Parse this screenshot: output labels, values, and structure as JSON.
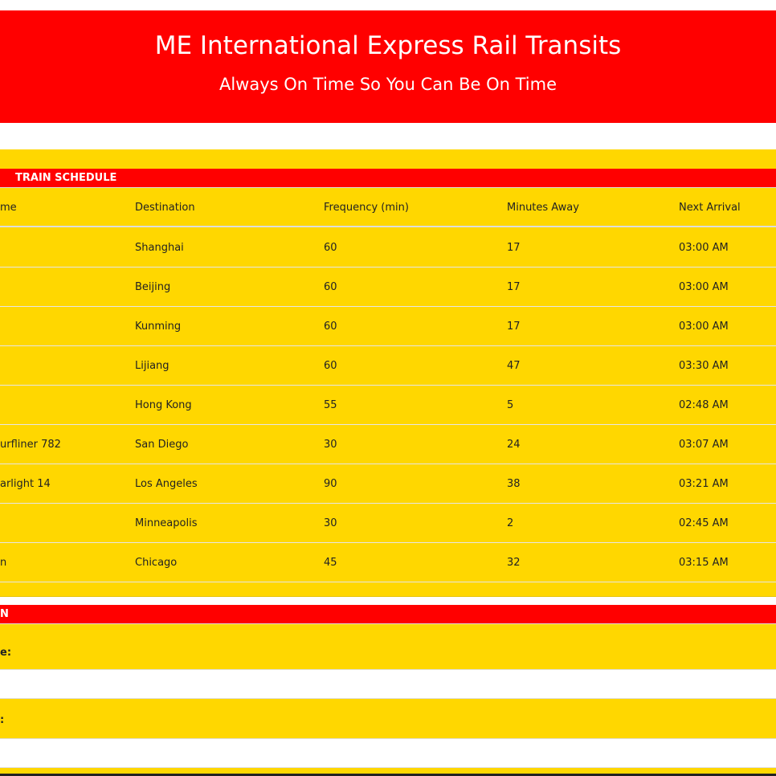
{
  "header": {
    "title": "ME International Express Rail Transits",
    "subtitle": "Always On Time So You Can Be On Time"
  },
  "schedule": {
    "title": "TRAIN SCHEDULE",
    "columns": [
      "me",
      "Destination",
      "Frequency (min)",
      "Minutes Away",
      "Next Arrival"
    ],
    "rows": [
      [
        "",
        "Shanghai",
        "60",
        "17",
        "03:00 AM"
      ],
      [
        "",
        "Beijing",
        "60",
        "17",
        "03:00 AM"
      ],
      [
        "",
        "Kunming",
        "60",
        "17",
        "03:00 AM"
      ],
      [
        "",
        "Lijiang",
        "60",
        "47",
        "03:30 AM"
      ],
      [
        "",
        "Hong Kong",
        "55",
        "5",
        "02:48 AM"
      ],
      [
        "urfliner 782",
        "San Diego",
        "30",
        "24",
        "03:07 AM"
      ],
      [
        "arlight 14",
        "Los Angeles",
        "90",
        "38",
        "03:21 AM"
      ],
      [
        "",
        "Minneapolis",
        "30",
        "2",
        "02:45 AM"
      ],
      [
        "n",
        "Chicago",
        "45",
        "32",
        "03:15 AM"
      ]
    ]
  },
  "form": {
    "title": "N",
    "field1_label": "e:",
    "field2_label": ":"
  },
  "colors": {
    "red": "#ff0000",
    "yellow": "#ffd700"
  }
}
